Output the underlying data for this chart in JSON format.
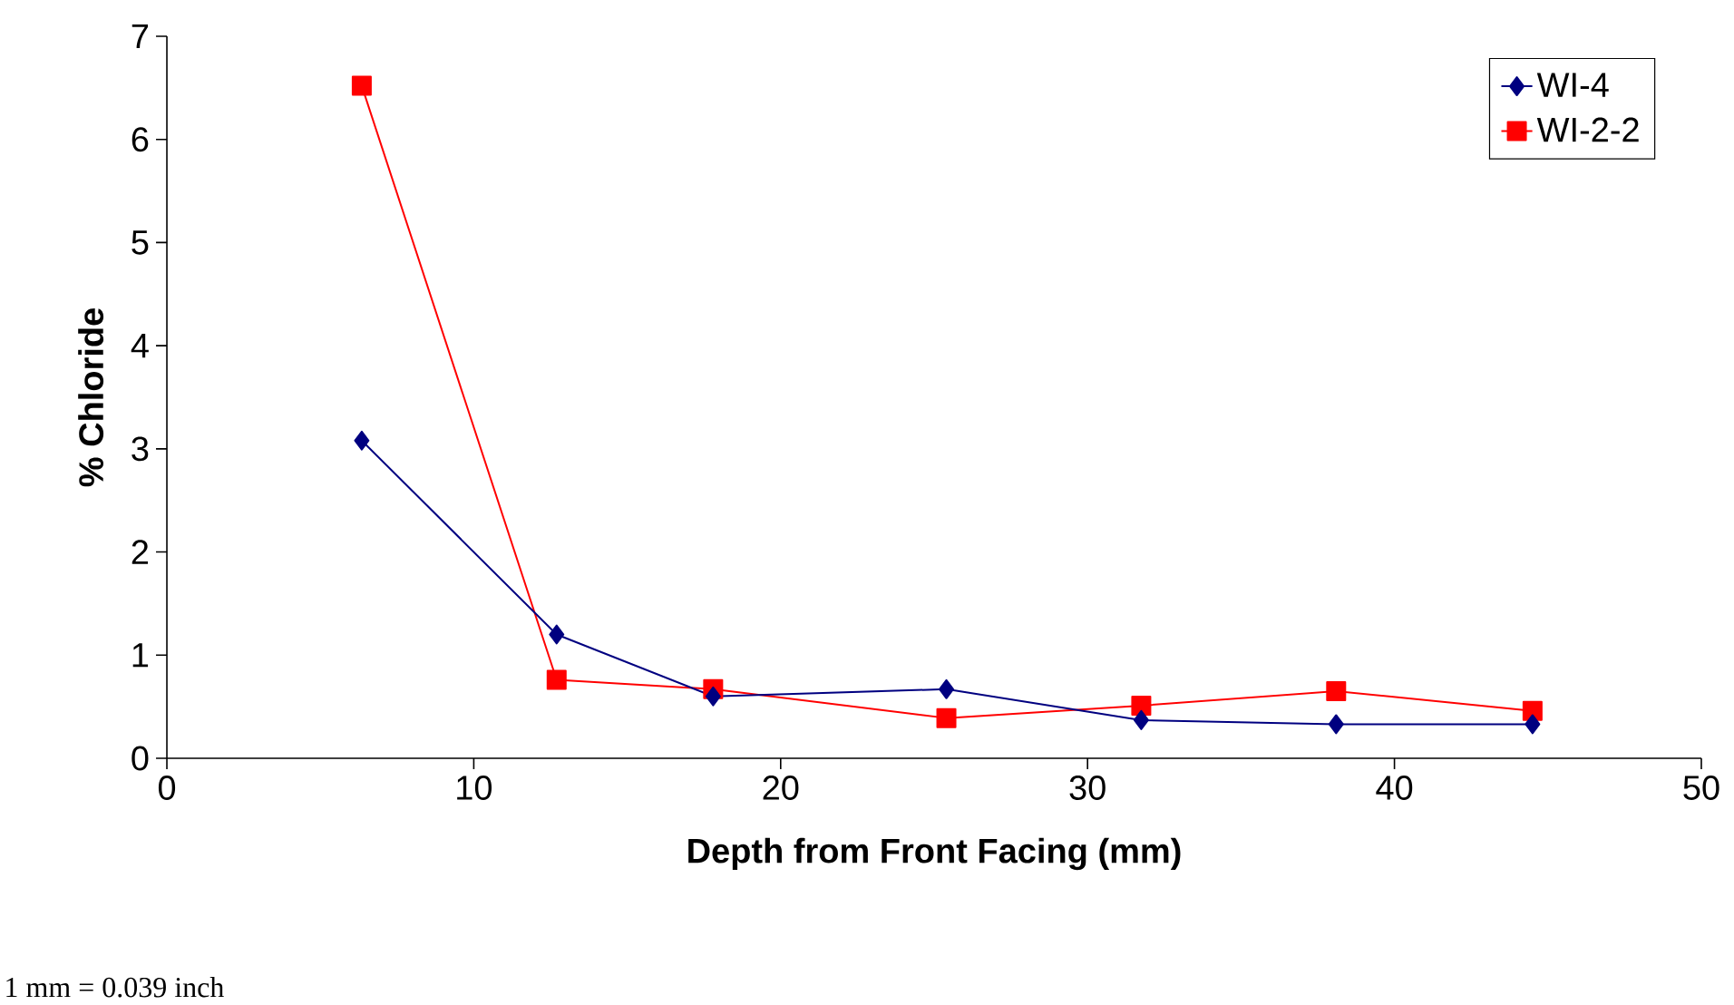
{
  "chart_data": {
    "type": "line",
    "xlabel": "Depth from Front Facing (mm)",
    "ylabel": "% Chloride",
    "xlim": [
      0,
      50
    ],
    "xticks": [
      0,
      10,
      20,
      30,
      40,
      50
    ],
    "ylim": [
      0,
      7
    ],
    "yticks": [
      0,
      1,
      2,
      3,
      4,
      5,
      6,
      7
    ],
    "x": [
      6.35,
      12.7,
      17.8,
      25.4,
      31.75,
      38.1,
      44.5
    ],
    "series": [
      {
        "name": "WI-4",
        "color": "#000080",
        "marker": "diamond",
        "values": [
          3.08,
          1.2,
          0.6,
          0.67,
          0.37,
          0.33,
          0.33
        ]
      },
      {
        "name": "WI-2-2",
        "color": "#ff0000",
        "marker": "square",
        "values": [
          6.52,
          0.76,
          0.67,
          0.39,
          0.51,
          0.65,
          0.46
        ]
      }
    ],
    "legend": "top right",
    "grid": false,
    "annotations": [
      "1 mm = 0.039 inch"
    ]
  }
}
